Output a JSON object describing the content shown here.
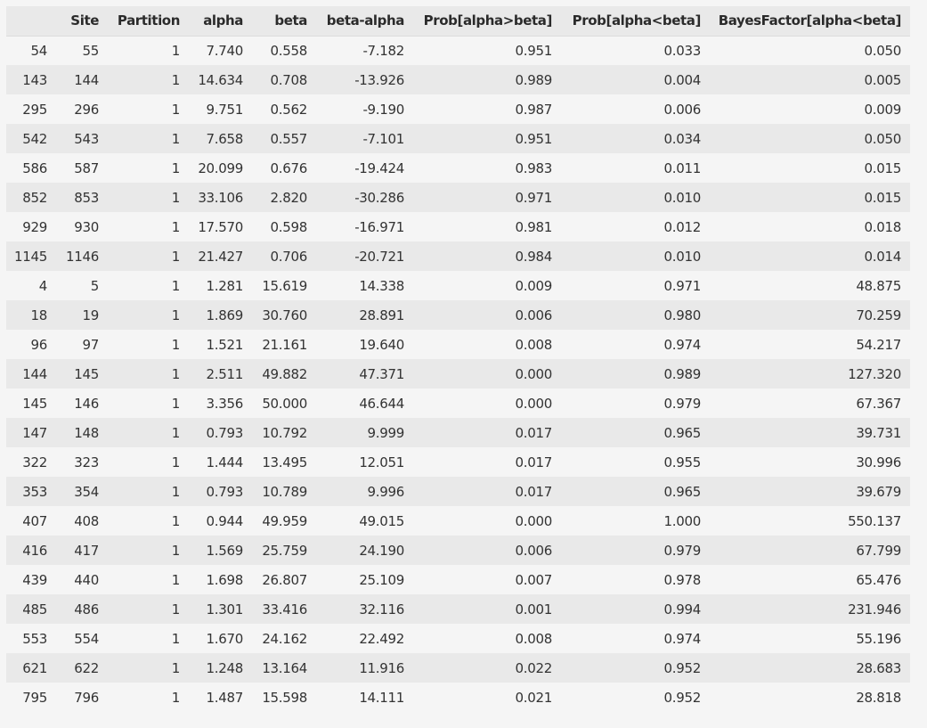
{
  "table": {
    "columns": [
      "",
      "Site",
      "Partition",
      "alpha",
      "beta",
      "beta-alpha",
      "Prob[alpha>beta]",
      "Prob[alpha<beta]",
      "BayesFactor[alpha<beta]"
    ],
    "rows": [
      [
        "54",
        "55",
        "1",
        "7.740",
        "0.558",
        "-7.182",
        "0.951",
        "0.033",
        "0.050"
      ],
      [
        "143",
        "144",
        "1",
        "14.634",
        "0.708",
        "-13.926",
        "0.989",
        "0.004",
        "0.005"
      ],
      [
        "295",
        "296",
        "1",
        "9.751",
        "0.562",
        "-9.190",
        "0.987",
        "0.006",
        "0.009"
      ],
      [
        "542",
        "543",
        "1",
        "7.658",
        "0.557",
        "-7.101",
        "0.951",
        "0.034",
        "0.050"
      ],
      [
        "586",
        "587",
        "1",
        "20.099",
        "0.676",
        "-19.424",
        "0.983",
        "0.011",
        "0.015"
      ],
      [
        "852",
        "853",
        "1",
        "33.106",
        "2.820",
        "-30.286",
        "0.971",
        "0.010",
        "0.015"
      ],
      [
        "929",
        "930",
        "1",
        "17.570",
        "0.598",
        "-16.971",
        "0.981",
        "0.012",
        "0.018"
      ],
      [
        "1145",
        "1146",
        "1",
        "21.427",
        "0.706",
        "-20.721",
        "0.984",
        "0.010",
        "0.014"
      ],
      [
        "4",
        "5",
        "1",
        "1.281",
        "15.619",
        "14.338",
        "0.009",
        "0.971",
        "48.875"
      ],
      [
        "18",
        "19",
        "1",
        "1.869",
        "30.760",
        "28.891",
        "0.006",
        "0.980",
        "70.259"
      ],
      [
        "96",
        "97",
        "1",
        "1.521",
        "21.161",
        "19.640",
        "0.008",
        "0.974",
        "54.217"
      ],
      [
        "144",
        "145",
        "1",
        "2.511",
        "49.882",
        "47.371",
        "0.000",
        "0.989",
        "127.320"
      ],
      [
        "145",
        "146",
        "1",
        "3.356",
        "50.000",
        "46.644",
        "0.000",
        "0.979",
        "67.367"
      ],
      [
        "147",
        "148",
        "1",
        "0.793",
        "10.792",
        "9.999",
        "0.017",
        "0.965",
        "39.731"
      ],
      [
        "322",
        "323",
        "1",
        "1.444",
        "13.495",
        "12.051",
        "0.017",
        "0.955",
        "30.996"
      ],
      [
        "353",
        "354",
        "1",
        "0.793",
        "10.789",
        "9.996",
        "0.017",
        "0.965",
        "39.679"
      ],
      [
        "407",
        "408",
        "1",
        "0.944",
        "49.959",
        "49.015",
        "0.000",
        "1.000",
        "550.137"
      ],
      [
        "416",
        "417",
        "1",
        "1.569",
        "25.759",
        "24.190",
        "0.006",
        "0.979",
        "67.799"
      ],
      [
        "439",
        "440",
        "1",
        "1.698",
        "26.807",
        "25.109",
        "0.007",
        "0.978",
        "65.476"
      ],
      [
        "485",
        "486",
        "1",
        "1.301",
        "33.416",
        "32.116",
        "0.001",
        "0.994",
        "231.946"
      ],
      [
        "553",
        "554",
        "1",
        "1.670",
        "24.162",
        "22.492",
        "0.008",
        "0.974",
        "55.196"
      ],
      [
        "621",
        "622",
        "1",
        "1.248",
        "13.164",
        "11.916",
        "0.022",
        "0.952",
        "28.683"
      ],
      [
        "795",
        "796",
        "1",
        "1.487",
        "15.598",
        "14.111",
        "0.021",
        "0.952",
        "28.818"
      ]
    ]
  }
}
